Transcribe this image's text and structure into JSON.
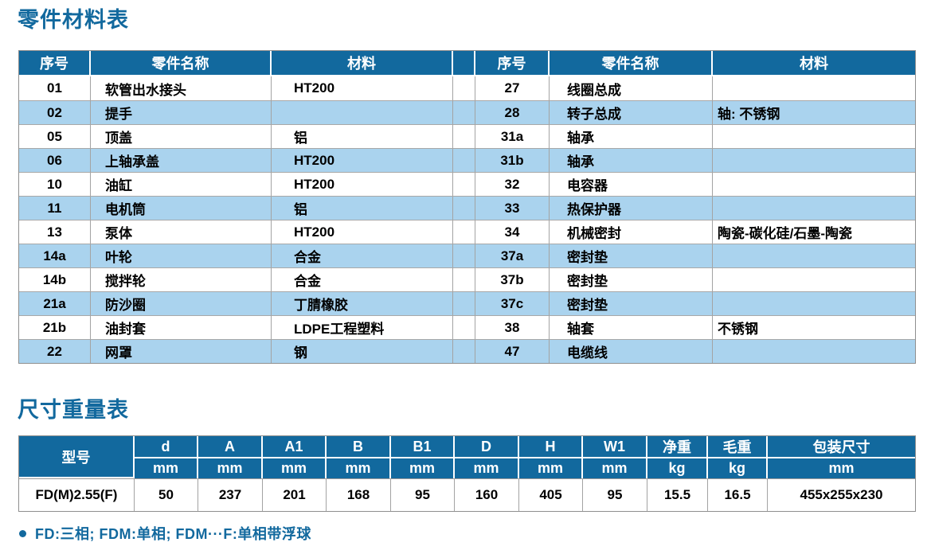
{
  "titles": {
    "parts": "零件材料表",
    "dimensions": "尺寸重量表"
  },
  "parts_table": {
    "headers": {
      "no": "序号",
      "name": "零件名称",
      "material": "材料"
    },
    "left_rows": [
      {
        "no": "01",
        "name": "软管出水接头",
        "material": "HT200"
      },
      {
        "no": "02",
        "name": "提手",
        "material": ""
      },
      {
        "no": "05",
        "name": "顶盖",
        "material": "铝"
      },
      {
        "no": "06",
        "name": "上轴承盖",
        "material": "HT200"
      },
      {
        "no": "10",
        "name": "油缸",
        "material": "HT200"
      },
      {
        "no": "11",
        "name": "电机筒",
        "material": "铝"
      },
      {
        "no": "13",
        "name": "泵体",
        "material": "HT200"
      },
      {
        "no": "14a",
        "name": "叶轮",
        "material": "合金"
      },
      {
        "no": "14b",
        "name": "搅拌轮",
        "material": "合金"
      },
      {
        "no": "21a",
        "name": "防沙圈",
        "material": "丁腈橡胶"
      },
      {
        "no": "21b",
        "name": "油封套",
        "material": "LDPE工程塑料"
      },
      {
        "no": "22",
        "name": "网罩",
        "material": "钢"
      }
    ],
    "right_rows": [
      {
        "no": "27",
        "name": "线圈总成",
        "material": ""
      },
      {
        "no": "28",
        "name": "转子总成",
        "material": "轴: 不锈钢"
      },
      {
        "no": "31a",
        "name": "轴承",
        "material": ""
      },
      {
        "no": "31b",
        "name": "轴承",
        "material": ""
      },
      {
        "no": "32",
        "name": "电容器",
        "material": ""
      },
      {
        "no": "33",
        "name": "热保护器",
        "material": ""
      },
      {
        "no": "34",
        "name": "机械密封",
        "material": "陶瓷-碳化硅/石墨-陶瓷"
      },
      {
        "no": "37a",
        "name": "密封垫",
        "material": ""
      },
      {
        "no": "37b",
        "name": "密封垫",
        "material": ""
      },
      {
        "no": "37c",
        "name": "密封垫",
        "material": ""
      },
      {
        "no": "38",
        "name": "轴套",
        "material": "不锈钢"
      },
      {
        "no": "47",
        "name": "电缆线",
        "material": ""
      }
    ]
  },
  "dims_table": {
    "model_header": "型号",
    "columns": [
      {
        "label": "d",
        "unit": "mm"
      },
      {
        "label": "A",
        "unit": "mm"
      },
      {
        "label": "A1",
        "unit": "mm"
      },
      {
        "label": "B",
        "unit": "mm"
      },
      {
        "label": "B1",
        "unit": "mm"
      },
      {
        "label": "D",
        "unit": "mm"
      },
      {
        "label": "H",
        "unit": "mm"
      },
      {
        "label": "W1",
        "unit": "mm"
      },
      {
        "label": "净重",
        "unit": "kg"
      },
      {
        "label": "毛重",
        "unit": "kg"
      },
      {
        "label": "包装尺寸",
        "unit": "mm"
      }
    ],
    "row": {
      "model": "FD(M)2.55(F)",
      "values": [
        "50",
        "237",
        "201",
        "168",
        "95",
        "160",
        "405",
        "95",
        "15.5",
        "16.5",
        "455x255x230"
      ]
    }
  },
  "footnote": {
    "text": "FD:三相; FDM:单相; FDM···F:单相带浮球"
  },
  "colors": {
    "accent_blue": "#12699E",
    "stripe_blue": "#AAD3EE",
    "border_gray": "#A3A3A3",
    "text_black": "#000000"
  }
}
